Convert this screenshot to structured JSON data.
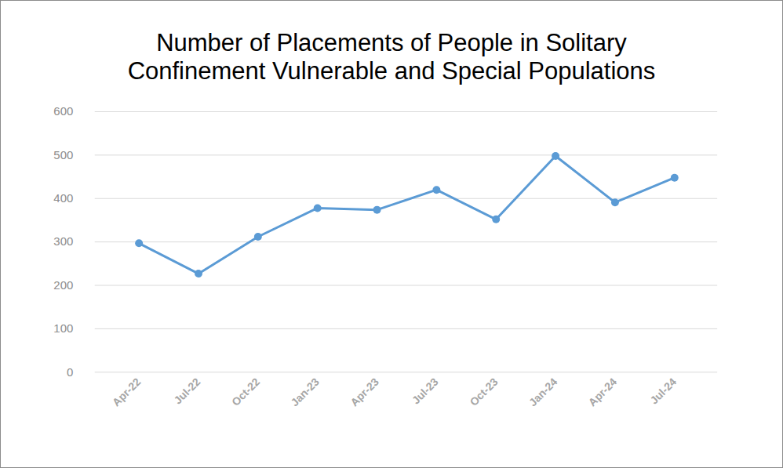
{
  "chart_data": {
    "type": "line",
    "title": "Number of Placements of People in Solitary\nConfinement Vulnerable and Special Populations",
    "categories": [
      "Apr-22",
      "Jul-22",
      "Oct-22",
      "Jan-23",
      "Apr-23",
      "Jul-23",
      "Oct-23",
      "Jan-24",
      "Apr-24",
      "Jul-24"
    ],
    "values": [
      297,
      227,
      312,
      378,
      374,
      420,
      352,
      498,
      391,
      448
    ],
    "color": "#5b9bd5",
    "marker": "circle",
    "ylim": [
      0,
      600
    ],
    "yticks": [
      0,
      100,
      200,
      300,
      400,
      500,
      600
    ],
    "grid": true
  }
}
